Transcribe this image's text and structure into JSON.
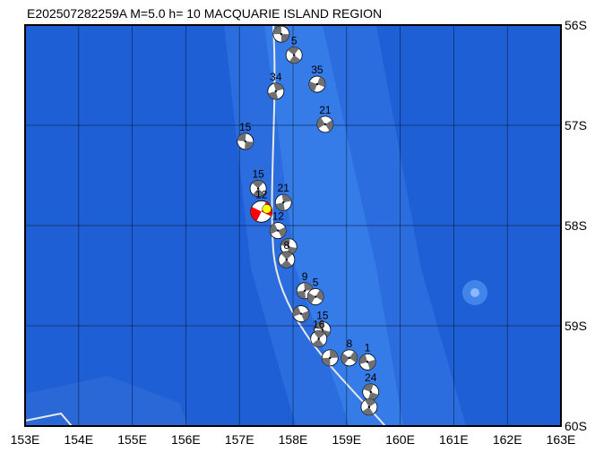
{
  "title": "E202507282259A M=5.0 h= 10 MACQUARIE ISLAND REGION",
  "map": {
    "xlim": [
      153,
      163
    ],
    "ylim": [
      -60,
      -56
    ],
    "xticks": [
      {
        "value": 153,
        "label": "153E"
      },
      {
        "value": 154,
        "label": "154E"
      },
      {
        "value": 155,
        "label": "155E"
      },
      {
        "value": 156,
        "label": "156E"
      },
      {
        "value": 157,
        "label": "157E"
      },
      {
        "value": 158,
        "label": "158E"
      },
      {
        "value": 159,
        "label": "159E"
      },
      {
        "value": 160,
        "label": "160E"
      },
      {
        "value": 161,
        "label": "161E"
      },
      {
        "value": 162,
        "label": "162E"
      },
      {
        "value": 163,
        "label": "163E"
      }
    ],
    "yticks": [
      {
        "value": -56,
        "label": "56S"
      },
      {
        "value": -57,
        "label": "57S"
      },
      {
        "value": -58,
        "label": "58S"
      },
      {
        "value": -59,
        "label": "59S"
      },
      {
        "value": -60,
        "label": "60S"
      }
    ],
    "grid": true
  },
  "events": [
    {
      "lon": 157.78,
      "lat": -56.09
    },
    {
      "lon": 158.02,
      "lat": -56.3,
      "label": 5
    },
    {
      "lon": 157.68,
      "lat": -56.66,
      "label": 34
    },
    {
      "lon": 158.45,
      "lat": -56.59,
      "label": 35
    },
    {
      "lon": 158.6,
      "lat": -56.99,
      "label": 21
    },
    {
      "lon": 157.11,
      "lat": -57.16,
      "label": 15
    },
    {
      "lon": 157.35,
      "lat": -57.63,
      "label": 15
    },
    {
      "lon": 157.82,
      "lat": -57.77,
      "label": 21
    },
    {
      "lon": 157.41,
      "lat": -57.86,
      "label": 12,
      "color": "#ff0000"
    },
    {
      "lon": 157.72,
      "lat": -58.05,
      "label": 12
    },
    {
      "lon": 157.92,
      "lat": -58.21
    },
    {
      "lon": 157.88,
      "lat": -58.34,
      "label": 8
    },
    {
      "lon": 158.22,
      "lat": -58.65,
      "label": 9
    },
    {
      "lon": 158.42,
      "lat": -58.71,
      "label": 5
    },
    {
      "lon": 158.15,
      "lat": -58.88
    },
    {
      "lon": 158.55,
      "lat": -59.04,
      "label": 15
    },
    {
      "lon": 158.48,
      "lat": -59.13,
      "label": 16
    },
    {
      "lon": 158.69,
      "lat": -59.32
    },
    {
      "lon": 159.05,
      "lat": -59.32,
      "label": 8
    },
    {
      "lon": 159.39,
      "lat": -59.36,
      "label": 1
    },
    {
      "lon": 159.45,
      "lat": -59.66,
      "label": 24
    },
    {
      "lon": 159.42,
      "lat": -59.81
    }
  ]
}
